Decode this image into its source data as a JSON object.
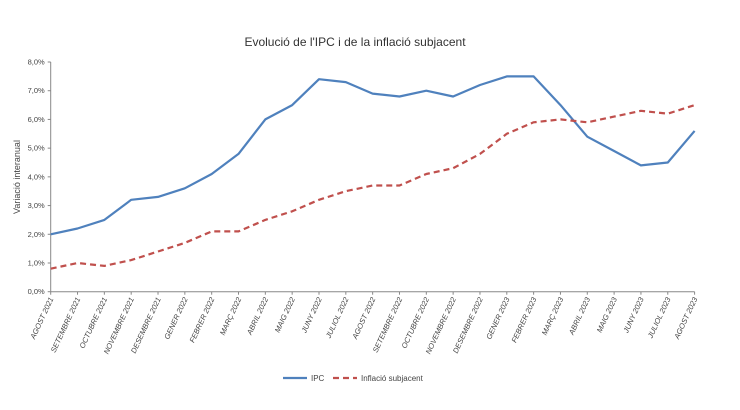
{
  "chart_data": {
    "type": "line",
    "title": "Evolució de l'IPC i de la inflació subjacent",
    "xlabel": "",
    "ylabel": "Variació interanual",
    "ylim": [
      0,
      8
    ],
    "yticks": [
      "0,0%",
      "1,0%",
      "2,0%",
      "3,0%",
      "4,0%",
      "5,0%",
      "6,0%",
      "7,0%",
      "8,0%"
    ],
    "grid": false,
    "legend_position": "bottom",
    "categories": [
      "AGOST 2021",
      "SETEMBRE 2021",
      "OCTUBRE 2021",
      "NOVEMBRE 2021",
      "DESEMBRE 2021",
      "GENER 2022",
      "FEBRER 2022",
      "MARÇ 2022",
      "ABRIL 2022",
      "MAIG 2022",
      "JUNY 2022",
      "JULIOL 2022",
      "AGOST 2022",
      "SETEMBRE 2022",
      "OCTUBRE 2022",
      "NOVEMBRE 2022",
      "DESEMBRE 2022",
      "GENER 2023",
      "FEBRER 2023",
      "MARÇ 2023",
      "ABRIL 2023",
      "MAIG 2023",
      "JUNY 2023",
      "JULIOL 2023",
      "AGOST 2023"
    ],
    "series": [
      {
        "name": "IPC",
        "color": "#4f81bd",
        "style": "solid",
        "values": [
          2.0,
          2.2,
          2.5,
          3.2,
          3.3,
          3.6,
          4.1,
          4.8,
          6.0,
          6.5,
          7.4,
          7.3,
          6.9,
          6.8,
          7.0,
          6.8,
          7.2,
          7.5,
          7.5,
          6.5,
          5.4,
          4.9,
          4.4,
          4.5,
          5.6
        ]
      },
      {
        "name": "Inflació subjacent",
        "color": "#c0504d",
        "style": "dashed",
        "values": [
          0.8,
          1.0,
          0.9,
          1.1,
          1.4,
          1.7,
          2.1,
          2.1,
          2.5,
          2.8,
          3.2,
          3.5,
          3.7,
          3.7,
          4.1,
          4.3,
          4.8,
          5.5,
          5.9,
          6.0,
          5.9,
          6.1,
          6.3,
          6.2,
          6.5
        ]
      }
    ]
  }
}
